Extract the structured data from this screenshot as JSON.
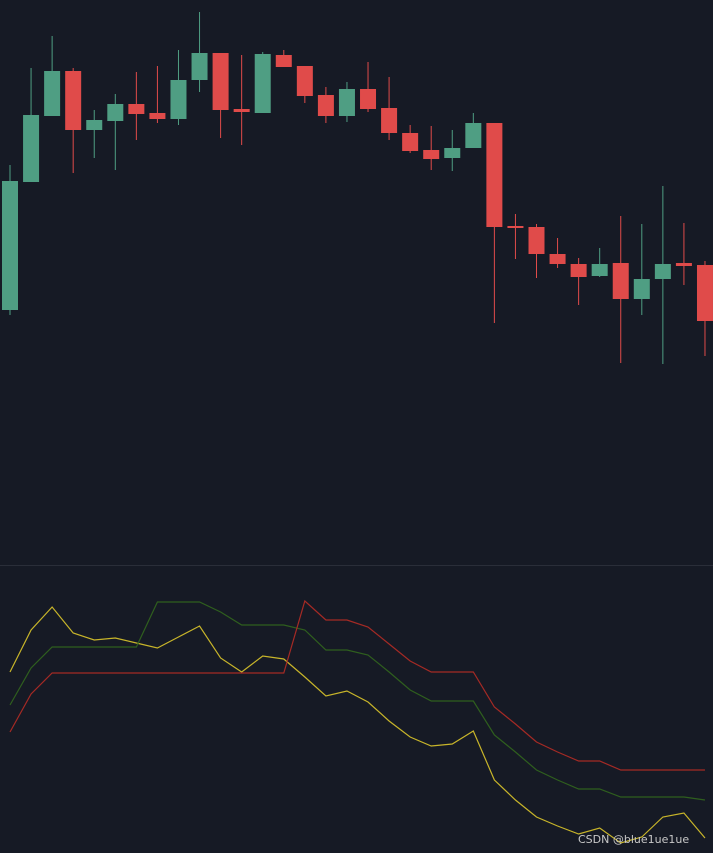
{
  "chart_data": [
    {
      "type": "candlestick",
      "up_color": "#4f9e83",
      "down_color": "#e04b4a",
      "ylim": [
        0,
        560
      ],
      "open": [
        250,
        378,
        444,
        489,
        430,
        439,
        456,
        447,
        441,
        480,
        507,
        451,
        447,
        505,
        494,
        465,
        444,
        471,
        452,
        427,
        410,
        402,
        412,
        437,
        334,
        333,
        306,
        296,
        284,
        297,
        261,
        281,
        297,
        295
      ],
      "close": [
        379,
        445,
        489,
        430,
        440,
        456,
        446,
        441,
        480,
        507,
        450,
        448,
        506,
        493,
        464,
        444,
        471,
        451,
        427,
        409,
        401,
        412,
        437,
        333,
        332,
        306,
        296,
        283,
        296,
        261,
        281,
        296,
        294,
        239
      ],
      "high": [
        395,
        492,
        524,
        492,
        450,
        466,
        488,
        494,
        510,
        548,
        507,
        505,
        508,
        510,
        494,
        473,
        478,
        498,
        483,
        435,
        434,
        430,
        447,
        437,
        346,
        336,
        322,
        302,
        312,
        344,
        336,
        374,
        337,
        299
      ],
      "low": [
        245,
        378,
        444,
        387,
        402,
        390,
        420,
        437,
        435,
        468,
        422,
        415,
        447,
        493,
        457,
        437,
        438,
        448,
        420,
        407,
        390,
        389,
        412,
        237,
        301,
        282,
        292,
        255,
        283,
        197,
        245,
        196,
        275,
        204
      ]
    },
    {
      "type": "line",
      "ylim": [
        0,
        287
      ],
      "series": [
        {
          "color": "#c8b52a",
          "values": [
            181,
            223,
            246,
            220,
            213,
            215,
            210,
            205,
            216,
            227,
            195,
            181,
            197,
            194,
            176,
            157,
            162,
            151,
            132,
            116,
            107,
            109,
            122,
            73,
            53,
            36,
            27,
            19,
            25,
            10,
            16,
            36,
            40,
            15
          ]
        },
        {
          "color": "#2f5f1e",
          "values": [
            148,
            185,
            206,
            206,
            206,
            206,
            206,
            251,
            251,
            251,
            241,
            228,
            228,
            228,
            223,
            203,
            203,
            198,
            181,
            163,
            152,
            152,
            152,
            118,
            101,
            83,
            73,
            64,
            64,
            56,
            56,
            56,
            56,
            53
          ]
        },
        {
          "color": "#a52a25",
          "values": [
            121,
            159,
            180,
            180,
            180,
            180,
            180,
            180,
            180,
            180,
            180,
            180,
            180,
            180,
            252,
            233,
            233,
            226,
            209,
            192,
            181,
            181,
            181,
            146,
            129,
            111,
            101,
            92,
            92,
            83,
            83,
            83,
            83,
            83
          ]
        }
      ]
    }
  ],
  "watermark": "CSDN @blue1ue1ue"
}
